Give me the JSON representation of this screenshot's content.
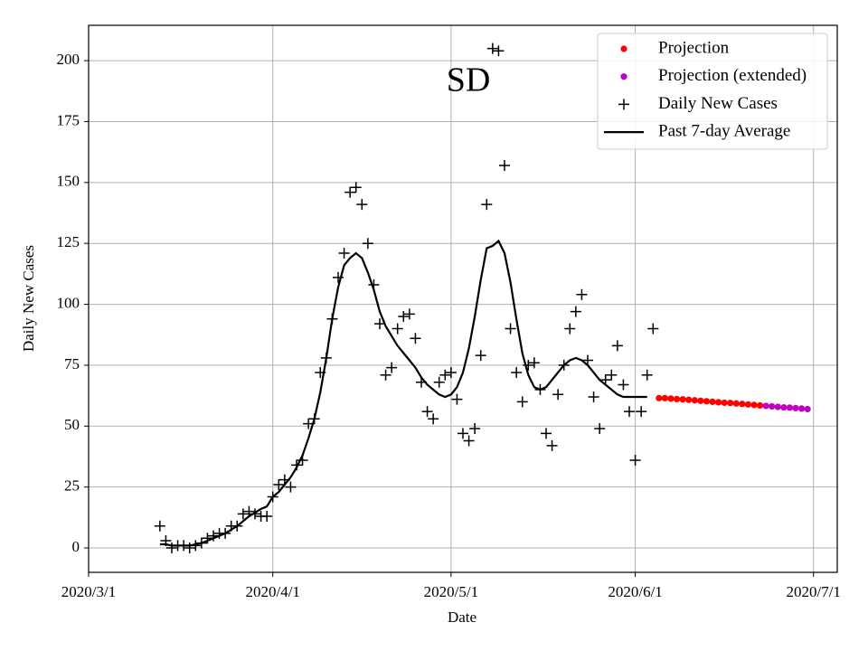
{
  "chart_data": {
    "type": "line",
    "title": "SD",
    "xlabel": "Date",
    "ylabel": "Daily New Cases",
    "xlim": [
      "2020-03-01",
      "2020-07-05"
    ],
    "xticks": [
      {
        "value": "2020-03-01",
        "label": "2020/3/1"
      },
      {
        "value": "2020-04-01",
        "label": "2020/4/1"
      },
      {
        "value": "2020-05-01",
        "label": "2020/5/1"
      },
      {
        "value": "2020-06-01",
        "label": "2020/6/1"
      },
      {
        "value": "2020-07-01",
        "label": "2020/7/1"
      }
    ],
    "ylim": [
      -10,
      214.5
    ],
    "yticks": [
      0,
      25,
      50,
      75,
      100,
      125,
      150,
      175,
      200
    ],
    "grid": true,
    "legend": "upper right",
    "series": [
      {
        "name": "Projection",
        "color": "#ff0000",
        "style": "dot",
        "x": [
          "2020-06-05",
          "2020-06-06",
          "2020-06-07",
          "2020-06-08",
          "2020-06-09",
          "2020-06-10",
          "2020-06-11",
          "2020-06-12",
          "2020-06-13",
          "2020-06-14",
          "2020-06-15",
          "2020-06-16",
          "2020-06-17",
          "2020-06-18",
          "2020-06-19",
          "2020-06-20",
          "2020-06-21",
          "2020-06-22"
        ],
        "values": [
          61.5,
          61.5,
          61.3,
          61.1,
          61,
          60.8,
          60.6,
          60.4,
          60.2,
          60,
          59.8,
          59.6,
          59.5,
          59.3,
          59.1,
          58.9,
          58.7,
          58.5
        ]
      },
      {
        "name": "Projection (extended)",
        "color": "#bf00bf",
        "style": "dot",
        "x": [
          "2020-06-23",
          "2020-06-24",
          "2020-06-25",
          "2020-06-26",
          "2020-06-27",
          "2020-06-28",
          "2020-06-29",
          "2020-06-30"
        ],
        "values": [
          58.3,
          58.1,
          57.9,
          57.7,
          57.6,
          57.4,
          57.2,
          57.0
        ]
      },
      {
        "name": "Daily New Cases",
        "color": "#000000",
        "style": "plus",
        "x": [
          "2020-03-13",
          "2020-03-14",
          "2020-03-15",
          "2020-03-16",
          "2020-03-17",
          "2020-03-18",
          "2020-03-19",
          "2020-03-20",
          "2020-03-21",
          "2020-03-22",
          "2020-03-23",
          "2020-03-24",
          "2020-03-25",
          "2020-03-26",
          "2020-03-27",
          "2020-03-28",
          "2020-03-29",
          "2020-03-30",
          "2020-03-31",
          "2020-04-01",
          "2020-04-02",
          "2020-04-03",
          "2020-04-04",
          "2020-04-05",
          "2020-04-06",
          "2020-04-07",
          "2020-04-08",
          "2020-04-09",
          "2020-04-10",
          "2020-04-11",
          "2020-04-12",
          "2020-04-13",
          "2020-04-14",
          "2020-04-15",
          "2020-04-16",
          "2020-04-17",
          "2020-04-18",
          "2020-04-19",
          "2020-04-20",
          "2020-04-21",
          "2020-04-22",
          "2020-04-23",
          "2020-04-24",
          "2020-04-25",
          "2020-04-26",
          "2020-04-27",
          "2020-04-28",
          "2020-04-29",
          "2020-04-30",
          "2020-05-01",
          "2020-05-02",
          "2020-05-03",
          "2020-05-04",
          "2020-05-05",
          "2020-05-06",
          "2020-05-07",
          "2020-05-08",
          "2020-05-09",
          "2020-05-10",
          "2020-05-11",
          "2020-05-12",
          "2020-05-13",
          "2020-05-14",
          "2020-05-15",
          "2020-05-16",
          "2020-05-17",
          "2020-05-18",
          "2020-05-19",
          "2020-05-20",
          "2020-05-21",
          "2020-05-22",
          "2020-05-23",
          "2020-05-24",
          "2020-05-25",
          "2020-05-26",
          "2020-05-27",
          "2020-05-28",
          "2020-05-29",
          "2020-05-30",
          "2020-05-31",
          "2020-06-01",
          "2020-06-02",
          "2020-06-03",
          "2020-06-04"
        ],
        "values": [
          9,
          3,
          0,
          1,
          1,
          0,
          1,
          2,
          4,
          5,
          6,
          6,
          9,
          9,
          14,
          15,
          14,
          13,
          13,
          21,
          26,
          28,
          25,
          34,
          36,
          51,
          53,
          72,
          78,
          94,
          111,
          121,
          146,
          148,
          141,
          125,
          108,
          92,
          71,
          74,
          90,
          95,
          96,
          86,
          68,
          56,
          53,
          68,
          71,
          72,
          61,
          47,
          44,
          49,
          79,
          141,
          205,
          204,
          157,
          90,
          72,
          60,
          75,
          76,
          65,
          47,
          42,
          63,
          75,
          90,
          97,
          104,
          77,
          62,
          49,
          69,
          71,
          83,
          67,
          56,
          36,
          56,
          71,
          90
        ]
      },
      {
        "name": "Past 7-day Average",
        "color": "#000000",
        "style": "line",
        "x": [
          "2020-03-13",
          "2020-03-14",
          "2020-03-15",
          "2020-03-16",
          "2020-03-17",
          "2020-03-18",
          "2020-03-19",
          "2020-03-20",
          "2020-03-21",
          "2020-03-22",
          "2020-03-23",
          "2020-03-24",
          "2020-03-25",
          "2020-03-26",
          "2020-03-27",
          "2020-03-28",
          "2020-03-29",
          "2020-03-30",
          "2020-03-31",
          "2020-04-01",
          "2020-04-02",
          "2020-04-03",
          "2020-04-04",
          "2020-04-05",
          "2020-04-06",
          "2020-04-07",
          "2020-04-08",
          "2020-04-09",
          "2020-04-10",
          "2020-04-11",
          "2020-04-12",
          "2020-04-13",
          "2020-04-14",
          "2020-04-15",
          "2020-04-16",
          "2020-04-17",
          "2020-04-18",
          "2020-04-19",
          "2020-04-20",
          "2020-04-21",
          "2020-04-22",
          "2020-04-23",
          "2020-04-24",
          "2020-04-25",
          "2020-04-26",
          "2020-04-27",
          "2020-04-28",
          "2020-04-29",
          "2020-04-30",
          "2020-05-01",
          "2020-05-02",
          "2020-05-03",
          "2020-05-04",
          "2020-05-05",
          "2020-05-06",
          "2020-05-07",
          "2020-05-08",
          "2020-05-09",
          "2020-05-10",
          "2020-05-11",
          "2020-05-12",
          "2020-05-13",
          "2020-05-14",
          "2020-05-15",
          "2020-05-16",
          "2020-05-17",
          "2020-05-18",
          "2020-05-19",
          "2020-05-20",
          "2020-05-21",
          "2020-05-22",
          "2020-05-23",
          "2020-05-24",
          "2020-05-25",
          "2020-05-26",
          "2020-05-27",
          "2020-05-28",
          "2020-05-29",
          "2020-05-30",
          "2020-05-31",
          "2020-06-01",
          "2020-06-02",
          "2020-06-03"
        ],
        "values": [
          1.5,
          1.5,
          1,
          1,
          1,
          1,
          1.5,
          2,
          3,
          4,
          5,
          6,
          7.5,
          9,
          11,
          13,
          14.5,
          16,
          17,
          21,
          23,
          26,
          29,
          33,
          38,
          45,
          53,
          64,
          78,
          94,
          107,
          116,
          119,
          121,
          119,
          113,
          106,
          97,
          91,
          87,
          83,
          80,
          77,
          74,
          70,
          67,
          65,
          63,
          62,
          63,
          66,
          72,
          82,
          95,
          110,
          123,
          124,
          126,
          121,
          109,
          94,
          80,
          71,
          66,
          65,
          66,
          69,
          72,
          75,
          77,
          78,
          77,
          75,
          72,
          69,
          67,
          65,
          63,
          62,
          62,
          62,
          62,
          62
        ]
      }
    ]
  }
}
